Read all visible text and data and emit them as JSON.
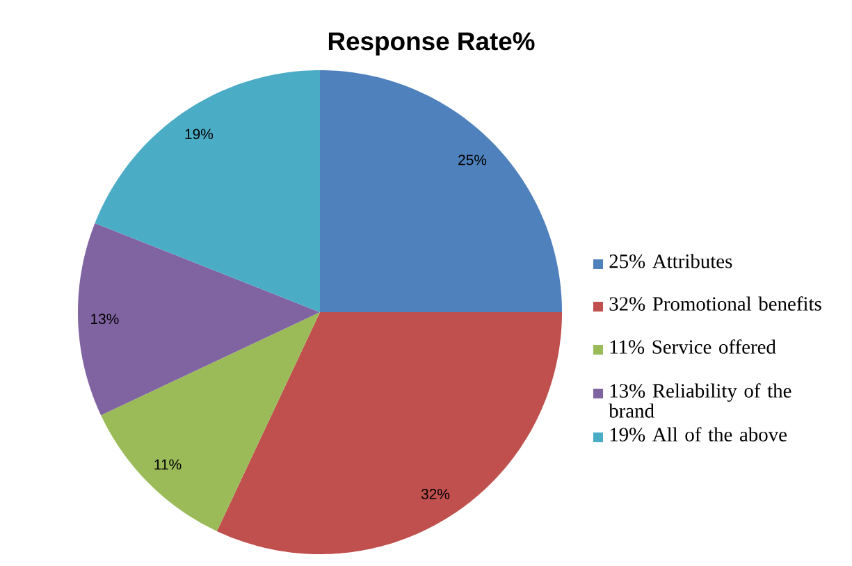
{
  "chart_data": {
    "type": "pie",
    "title": "Response Rate%",
    "categories": [
      "25% Attributes",
      "32% Promotional benefits",
      "11% Service offered",
      "13% Reliability of the brand",
      "19% All of the above"
    ],
    "values": [
      25,
      32,
      11,
      13,
      19
    ],
    "value_labels": [
      "25%",
      "32%",
      "11%",
      "13%",
      "19%"
    ],
    "colors": [
      "#4f81bd",
      "#c0504d",
      "#9bbb59",
      "#8064a2",
      "#4bacc6"
    ],
    "legend": "right"
  }
}
